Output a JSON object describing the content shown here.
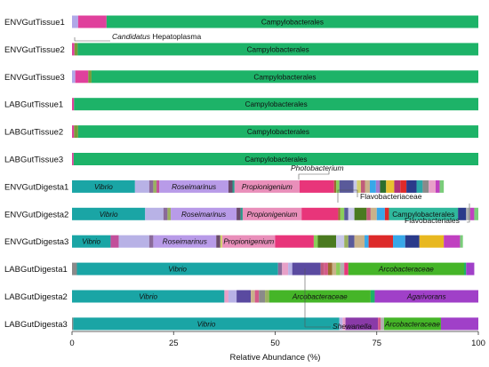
{
  "chart_data": {
    "type": "bar",
    "orientation": "horizontal",
    "stacked": true,
    "xlabel": "Relative Abundance (%)",
    "xlim": [
      0,
      100
    ],
    "xticks": [
      0,
      25,
      50,
      75,
      100
    ],
    "grid": false,
    "legend": "none",
    "categories": [
      "ENVGutTissue1",
      "ENVGutTissue2",
      "ENVGutTissue3",
      "LABGutTissue1",
      "LABGutTissue2",
      "LABGutTissue3",
      "ENVGutDigesta1",
      "ENVGutDigesta2",
      "ENVGutDigesta3",
      "LABGutDigesta1",
      "LABGutDigesta2",
      "LABGutDigesta3"
    ],
    "rows": [
      {
        "segments": [
          {
            "value": 1.5,
            "color": "#b0a8e8"
          },
          {
            "value": 7.0,
            "color": "#e0409c"
          },
          {
            "value": 91.5,
            "color": "#1db368",
            "label": "Campylobacterales"
          }
        ]
      },
      {
        "segments": [
          {
            "value": 0.6,
            "color": "#e0409c"
          },
          {
            "value": 0.8,
            "color": "#7a9a3a"
          },
          {
            "value": 98.6,
            "color": "#1db368",
            "label": "Campylobacterales"
          }
        ]
      },
      {
        "segments": [
          {
            "value": 0.8,
            "color": "#b0a8e8"
          },
          {
            "value": 3.2,
            "color": "#e0409c"
          },
          {
            "value": 0.8,
            "color": "#7a9a3a"
          },
          {
            "value": 95.2,
            "color": "#1db368",
            "label": "Campylobacterales"
          }
        ]
      },
      {
        "segments": [
          {
            "value": 0.5,
            "color": "#e0409c"
          },
          {
            "value": 99.5,
            "color": "#1db368",
            "label": "Campylobacterales"
          }
        ]
      },
      {
        "segments": [
          {
            "value": 0.5,
            "color": "#e0409c"
          },
          {
            "value": 1.0,
            "color": "#7a9a3a"
          },
          {
            "value": 98.5,
            "color": "#1db368",
            "label": "Campylobacterales"
          }
        ]
      },
      {
        "segments": [
          {
            "value": 0.4,
            "color": "#e0409c"
          },
          {
            "value": 99.6,
            "color": "#1db368",
            "label": "Campylobacterales"
          }
        ]
      },
      {
        "segments": [
          {
            "value": 15.5,
            "color": "#1aa5a5",
            "label": "Vibrio",
            "italic": true
          },
          {
            "value": 3.5,
            "color": "#b8b2e6"
          },
          {
            "value": 1.0,
            "color": "#8a6a9a"
          },
          {
            "value": 0.8,
            "color": "#9ab060"
          },
          {
            "value": 0.7,
            "color": "#c24f9b"
          },
          {
            "value": 17.0,
            "color": "#b89be8",
            "label": "Roseimarinus",
            "italic": true
          },
          {
            "value": 1.0,
            "color": "#6a4a6a"
          },
          {
            "value": 0.5,
            "color": "#2a9a8a"
          },
          {
            "value": 16.0,
            "color": "#e98fba",
            "label": "Propionigenium",
            "italic": true
          },
          {
            "value": 8.5,
            "color": "#e8357a"
          },
          {
            "value": 0.5,
            "color": "#9a6a30"
          },
          {
            "value": 0.8,
            "color": "#8acd5a"
          },
          {
            "value": 3.5,
            "color": "#5a5a9a"
          },
          {
            "value": 0.8,
            "color": "#c8c8e8"
          },
          {
            "value": 1.0,
            "color": "#d4d070"
          },
          {
            "value": 1.0,
            "color": "#c05c7a"
          },
          {
            "value": 1.2,
            "color": "#c9b28a"
          },
          {
            "value": 1.5,
            "color": "#38a8e8"
          },
          {
            "value": 1.0,
            "color": "#a07ad0"
          },
          {
            "value": 1.5,
            "color": "#2d6e2d"
          },
          {
            "value": 2.0,
            "color": "#e8c030"
          },
          {
            "value": 1.5,
            "color": "#b0307a"
          },
          {
            "value": 1.5,
            "color": "#dd2a2a"
          },
          {
            "value": 2.5,
            "color": "#2a3a8a"
          },
          {
            "value": 1.5,
            "color": "#2aa8a8"
          },
          {
            "value": 1.5,
            "color": "#8a8a8a"
          },
          {
            "value": 1.7,
            "color": "#e8a0c8"
          },
          {
            "value": 1.0,
            "color": "#c040c0"
          },
          {
            "value": 1.0,
            "color": "#7acd7a"
          }
        ]
      },
      {
        "segments": [
          {
            "value": 18.0,
            "color": "#1aa5a5",
            "label": "Vibrio",
            "italic": true
          },
          {
            "value": 4.5,
            "color": "#b8b2e6"
          },
          {
            "value": 1.0,
            "color": "#8a6a9a"
          },
          {
            "value": 0.8,
            "color": "#9ab060"
          },
          {
            "value": 16.2,
            "color": "#b89be8",
            "label": "Roseimarinus",
            "italic": true
          },
          {
            "value": 1.0,
            "color": "#6a4a6a"
          },
          {
            "value": 0.5,
            "color": "#2a9a8a"
          },
          {
            "value": 14.5,
            "color": "#e98fba",
            "label": "Propionigenium",
            "italic": true
          },
          {
            "value": 9.0,
            "color": "#e8357a"
          },
          {
            "value": 0.5,
            "color": "#9a6a30"
          },
          {
            "value": 1.0,
            "color": "#8acd5a"
          },
          {
            "value": 1.0,
            "color": "#5a5a9a"
          },
          {
            "value": 1.5,
            "color": "#c8c8e8"
          },
          {
            "value": 3.0,
            "color": "#4a7a20"
          },
          {
            "value": 1.0,
            "color": "#c05c7a"
          },
          {
            "value": 1.5,
            "color": "#c9b28a"
          },
          {
            "value": 2.0,
            "color": "#38a8e8"
          },
          {
            "value": 1.0,
            "color": "#dd2a2a"
          },
          {
            "value": 17.0,
            "color": "#2fb89c",
            "label": "Campylobacterales"
          },
          {
            "value": 2.0,
            "color": "#2a3a8a"
          },
          {
            "value": 1.0,
            "color": "#b0b0b0"
          },
          {
            "value": 1.0,
            "color": "#c040c0"
          },
          {
            "value": 1.0,
            "color": "#7acd7a"
          }
        ]
      },
      {
        "segments": [
          {
            "value": 9.5,
            "color": "#1aa5a5",
            "label": "Vibrio",
            "italic": true
          },
          {
            "value": 2.0,
            "color": "#c24f9b"
          },
          {
            "value": 7.5,
            "color": "#b8b2e6"
          },
          {
            "value": 1.0,
            "color": "#8a6a9a"
          },
          {
            "value": 15.5,
            "color": "#b89be8",
            "label": "Roseimarinus",
            "italic": true
          },
          {
            "value": 1.0,
            "color": "#6a4a6a"
          },
          {
            "value": 0.5,
            "color": "#d4d070"
          },
          {
            "value": 13.0,
            "color": "#e98fba",
            "label": "Propionigenium",
            "italic": true
          },
          {
            "value": 9.5,
            "color": "#e8357a"
          },
          {
            "value": 1.0,
            "color": "#8acd5a"
          },
          {
            "value": 4.5,
            "color": "#4a7a20"
          },
          {
            "value": 2.0,
            "color": "#c8c8e8"
          },
          {
            "value": 1.0,
            "color": "#9ab060"
          },
          {
            "value": 1.5,
            "color": "#5a5a9a"
          },
          {
            "value": 2.5,
            "color": "#c9b28a"
          },
          {
            "value": 1.0,
            "color": "#38a8e8"
          },
          {
            "value": 6.0,
            "color": "#dd2a2a"
          },
          {
            "value": 3.0,
            "color": "#38a8e8"
          },
          {
            "value": 3.5,
            "color": "#2a3a8a"
          },
          {
            "value": 6.0,
            "color": "#e8b820"
          },
          {
            "value": 4.0,
            "color": "#c040c0"
          },
          {
            "value": 0.7,
            "color": "#7acd7a"
          }
        ]
      },
      {
        "segments": [
          {
            "value": 1.2,
            "color": "#8a8a8a"
          },
          {
            "value": 49.5,
            "color": "#1aa5a5",
            "label": "Vibrio",
            "italic": true
          },
          {
            "value": 1.0,
            "color": "#8a6a9a"
          },
          {
            "value": 1.5,
            "color": "#e8a0c8"
          },
          {
            "value": 1.0,
            "color": "#b8b2e6"
          },
          {
            "value": 7.0,
            "color": "#5a4aa0"
          },
          {
            "value": 0.8,
            "color": "#c05c7a"
          },
          {
            "value": 1.0,
            "color": "#d45a8a"
          },
          {
            "value": 1.0,
            "color": "#9a6a30"
          },
          {
            "value": 1.0,
            "color": "#c9b28a"
          },
          {
            "value": 1.0,
            "color": "#8acd5a"
          },
          {
            "value": 1.0,
            "color": "#b0b0b0"
          },
          {
            "value": 1.0,
            "color": "#e8357a"
          },
          {
            "value": 28.5,
            "color": "#45b528",
            "label": "Arcobacteraceae",
            "italic": true
          },
          {
            "value": 0.5,
            "color": "#1db368"
          },
          {
            "value": 2.0,
            "color": "#a040c8"
          }
        ]
      },
      {
        "segments": [
          {
            "value": 37.5,
            "color": "#1aa5a5",
            "label": "Vibrio",
            "italic": true
          },
          {
            "value": 1.0,
            "color": "#e8a0c8"
          },
          {
            "value": 2.0,
            "color": "#b8b2e6"
          },
          {
            "value": 3.5,
            "color": "#5a4aa0"
          },
          {
            "value": 1.0,
            "color": "#c9b28a"
          },
          {
            "value": 1.0,
            "color": "#d45a8a"
          },
          {
            "value": 1.5,
            "color": "#8a8a8a"
          },
          {
            "value": 1.0,
            "color": "#9ab060"
          },
          {
            "value": 25.0,
            "color": "#45b528",
            "label": "Arcobacteraceae",
            "italic": true
          },
          {
            "value": 1.0,
            "color": "#1db368"
          },
          {
            "value": 25.5,
            "color": "#a040c8",
            "label": "Agarivorans",
            "italic": true
          }
        ]
      },
      {
        "segments": [
          {
            "value": 0.3,
            "color": "#8a8a8a"
          },
          {
            "value": 65.5,
            "color": "#1aa5a5",
            "label": "Vibrio",
            "italic": true
          },
          {
            "value": 0.8,
            "color": "#b8b2e6"
          },
          {
            "value": 0.7,
            "color": "#e8a0c8"
          },
          {
            "value": 8.0,
            "color": "#8a3aa8"
          },
          {
            "value": 0.7,
            "color": "#d45a8a"
          },
          {
            "value": 0.8,
            "color": "#b0b0b0"
          },
          {
            "value": 14.0,
            "color": "#45b528",
            "label": "Arcobacteraceae",
            "italic": true
          },
          {
            "value": 9.2,
            "color": "#a040c8"
          }
        ]
      }
    ],
    "annotations": [
      {
        "text": "Candidatus",
        "italic": true
      },
      {
        "text": "Hepatoplasma",
        "italic": false
      },
      {
        "text": "Photobacterium",
        "italic": true
      },
      {
        "text": "Flavobacteriaceae",
        "italic": false
      },
      {
        "text": "Flavobacteriales",
        "italic": false
      },
      {
        "text": "Shewanella",
        "italic": true
      }
    ]
  }
}
